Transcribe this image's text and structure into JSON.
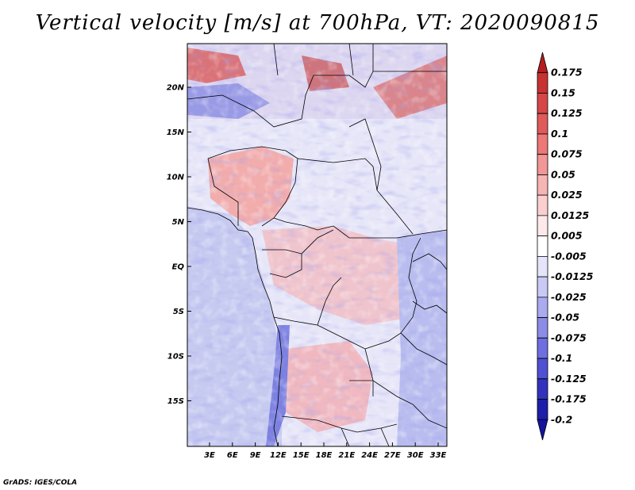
{
  "title": "Vertical velocity [m/s] at 700hPa, VT: 2020090815",
  "footer": "GrADS: IGES/COLA",
  "lat_labels": [
    "20N",
    "15N",
    "10N",
    "5N",
    "EQ",
    "5S",
    "10S",
    "15S"
  ],
  "lon_labels": [
    "3E",
    "6E",
    "9E",
    "12E",
    "15E",
    "18E",
    "21E",
    "24E",
    "27E",
    "30E",
    "33E"
  ],
  "colorbar": {
    "levels": [
      "0.175",
      "0.15",
      "0.125",
      "0.1",
      "0.075",
      "0.05",
      "0.025",
      "0.0125",
      "0.005",
      "-0.005",
      "-0.0125",
      "-0.025",
      "-0.05",
      "-0.075",
      "-0.1",
      "-0.125",
      "-0.175",
      "-0.2"
    ],
    "colors": [
      "#b41e1e",
      "#c83232",
      "#d74646",
      "#e15a5a",
      "#ec7878",
      "#f29696",
      "#f7b4b4",
      "#fbcfcf",
      "#fde9e9",
      "#ffffff",
      "#e4e4fa",
      "#c9c9f5",
      "#aaaaf0",
      "#8c8ce6",
      "#6e6ee1",
      "#5050d2",
      "#3232be",
      "#1e1eaa",
      "#1414a0"
    ]
  },
  "colors": {
    "land_red": "#f0a0a0",
    "sea_blue": "#c4c8ee",
    "blue_band": "#7c80e0",
    "border": "#000000"
  }
}
